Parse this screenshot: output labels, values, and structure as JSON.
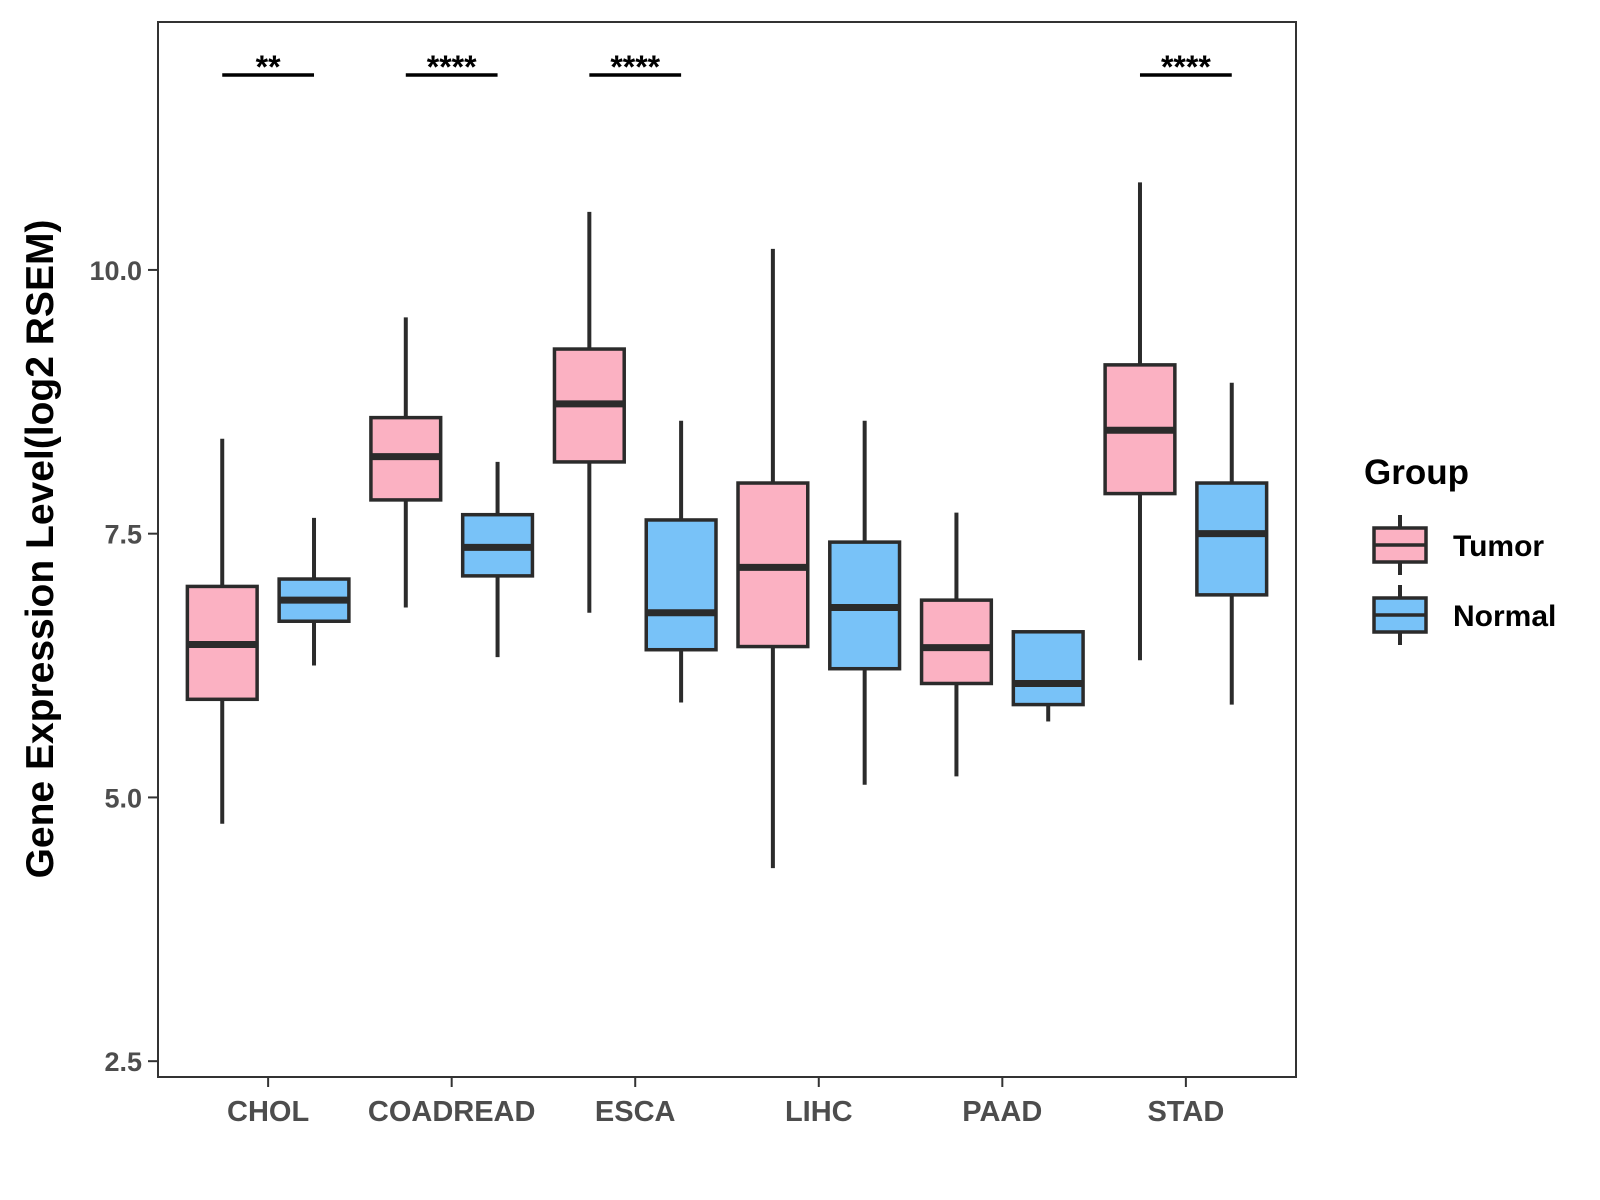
{
  "chart_data": {
    "type": "boxplot",
    "title": "",
    "xlabel": "",
    "ylabel": "Gene Expression Level(log2 RSEM)",
    "ylim": [
      2.35,
      12.35
    ],
    "yticks": [
      2.5,
      5.0,
      7.5,
      10.0
    ],
    "ytick_labels": [
      "2.5",
      "5.0",
      "7.5",
      "10.0"
    ],
    "categories": [
      "CHOL",
      "COADREAD",
      "ESCA",
      "LIHC",
      "PAAD",
      "STAD"
    ],
    "legend": {
      "title": "Group",
      "position": "right",
      "entries": [
        {
          "name": "Tumor",
          "color": "#FBB1C2"
        },
        {
          "name": "Normal",
          "color": "#78C2F8"
        }
      ]
    },
    "series": [
      {
        "name": "Tumor",
        "color": "#FBB1C2",
        "boxes": [
          {
            "whisker_low": 4.75,
            "q1": 5.93,
            "median": 6.45,
            "q3": 7.0,
            "whisker_high": 8.4
          },
          {
            "whisker_low": 6.8,
            "q1": 7.82,
            "median": 8.23,
            "q3": 8.6,
            "whisker_high": 9.55
          },
          {
            "whisker_low": 6.75,
            "q1": 8.18,
            "median": 8.73,
            "q3": 9.25,
            "whisker_high": 10.55
          },
          {
            "whisker_low": 4.33,
            "q1": 6.43,
            "median": 7.18,
            "q3": 7.98,
            "whisker_high": 10.2
          },
          {
            "whisker_low": 5.2,
            "q1": 6.08,
            "median": 6.42,
            "q3": 6.87,
            "whisker_high": 7.7
          },
          {
            "whisker_low": 6.3,
            "q1": 7.88,
            "median": 8.48,
            "q3": 9.1,
            "whisker_high": 10.83
          }
        ]
      },
      {
        "name": "Normal",
        "color": "#78C2F8",
        "boxes": [
          {
            "whisker_low": 6.25,
            "q1": 6.67,
            "median": 6.87,
            "q3": 7.07,
            "whisker_high": 7.65
          },
          {
            "whisker_low": 6.33,
            "q1": 7.1,
            "median": 7.37,
            "q3": 7.68,
            "whisker_high": 8.18
          },
          {
            "whisker_low": 5.9,
            "q1": 6.4,
            "median": 6.75,
            "q3": 7.63,
            "whisker_high": 8.57
          },
          {
            "whisker_low": 5.12,
            "q1": 6.22,
            "median": 6.8,
            "q3": 7.42,
            "whisker_high": 8.57
          },
          {
            "whisker_low": 5.72,
            "q1": 5.88,
            "median": 6.08,
            "q3": 6.57,
            "whisker_high": 6.57
          },
          {
            "whisker_low": 5.88,
            "q1": 6.92,
            "median": 7.5,
            "q3": 7.98,
            "whisker_high": 8.93
          }
        ]
      }
    ],
    "significance": [
      {
        "category": "CHOL",
        "label": "**"
      },
      {
        "category": "COADREAD",
        "label": "****"
      },
      {
        "category": "ESCA",
        "label": "****"
      },
      {
        "category": "STAD",
        "label": "****"
      }
    ]
  }
}
